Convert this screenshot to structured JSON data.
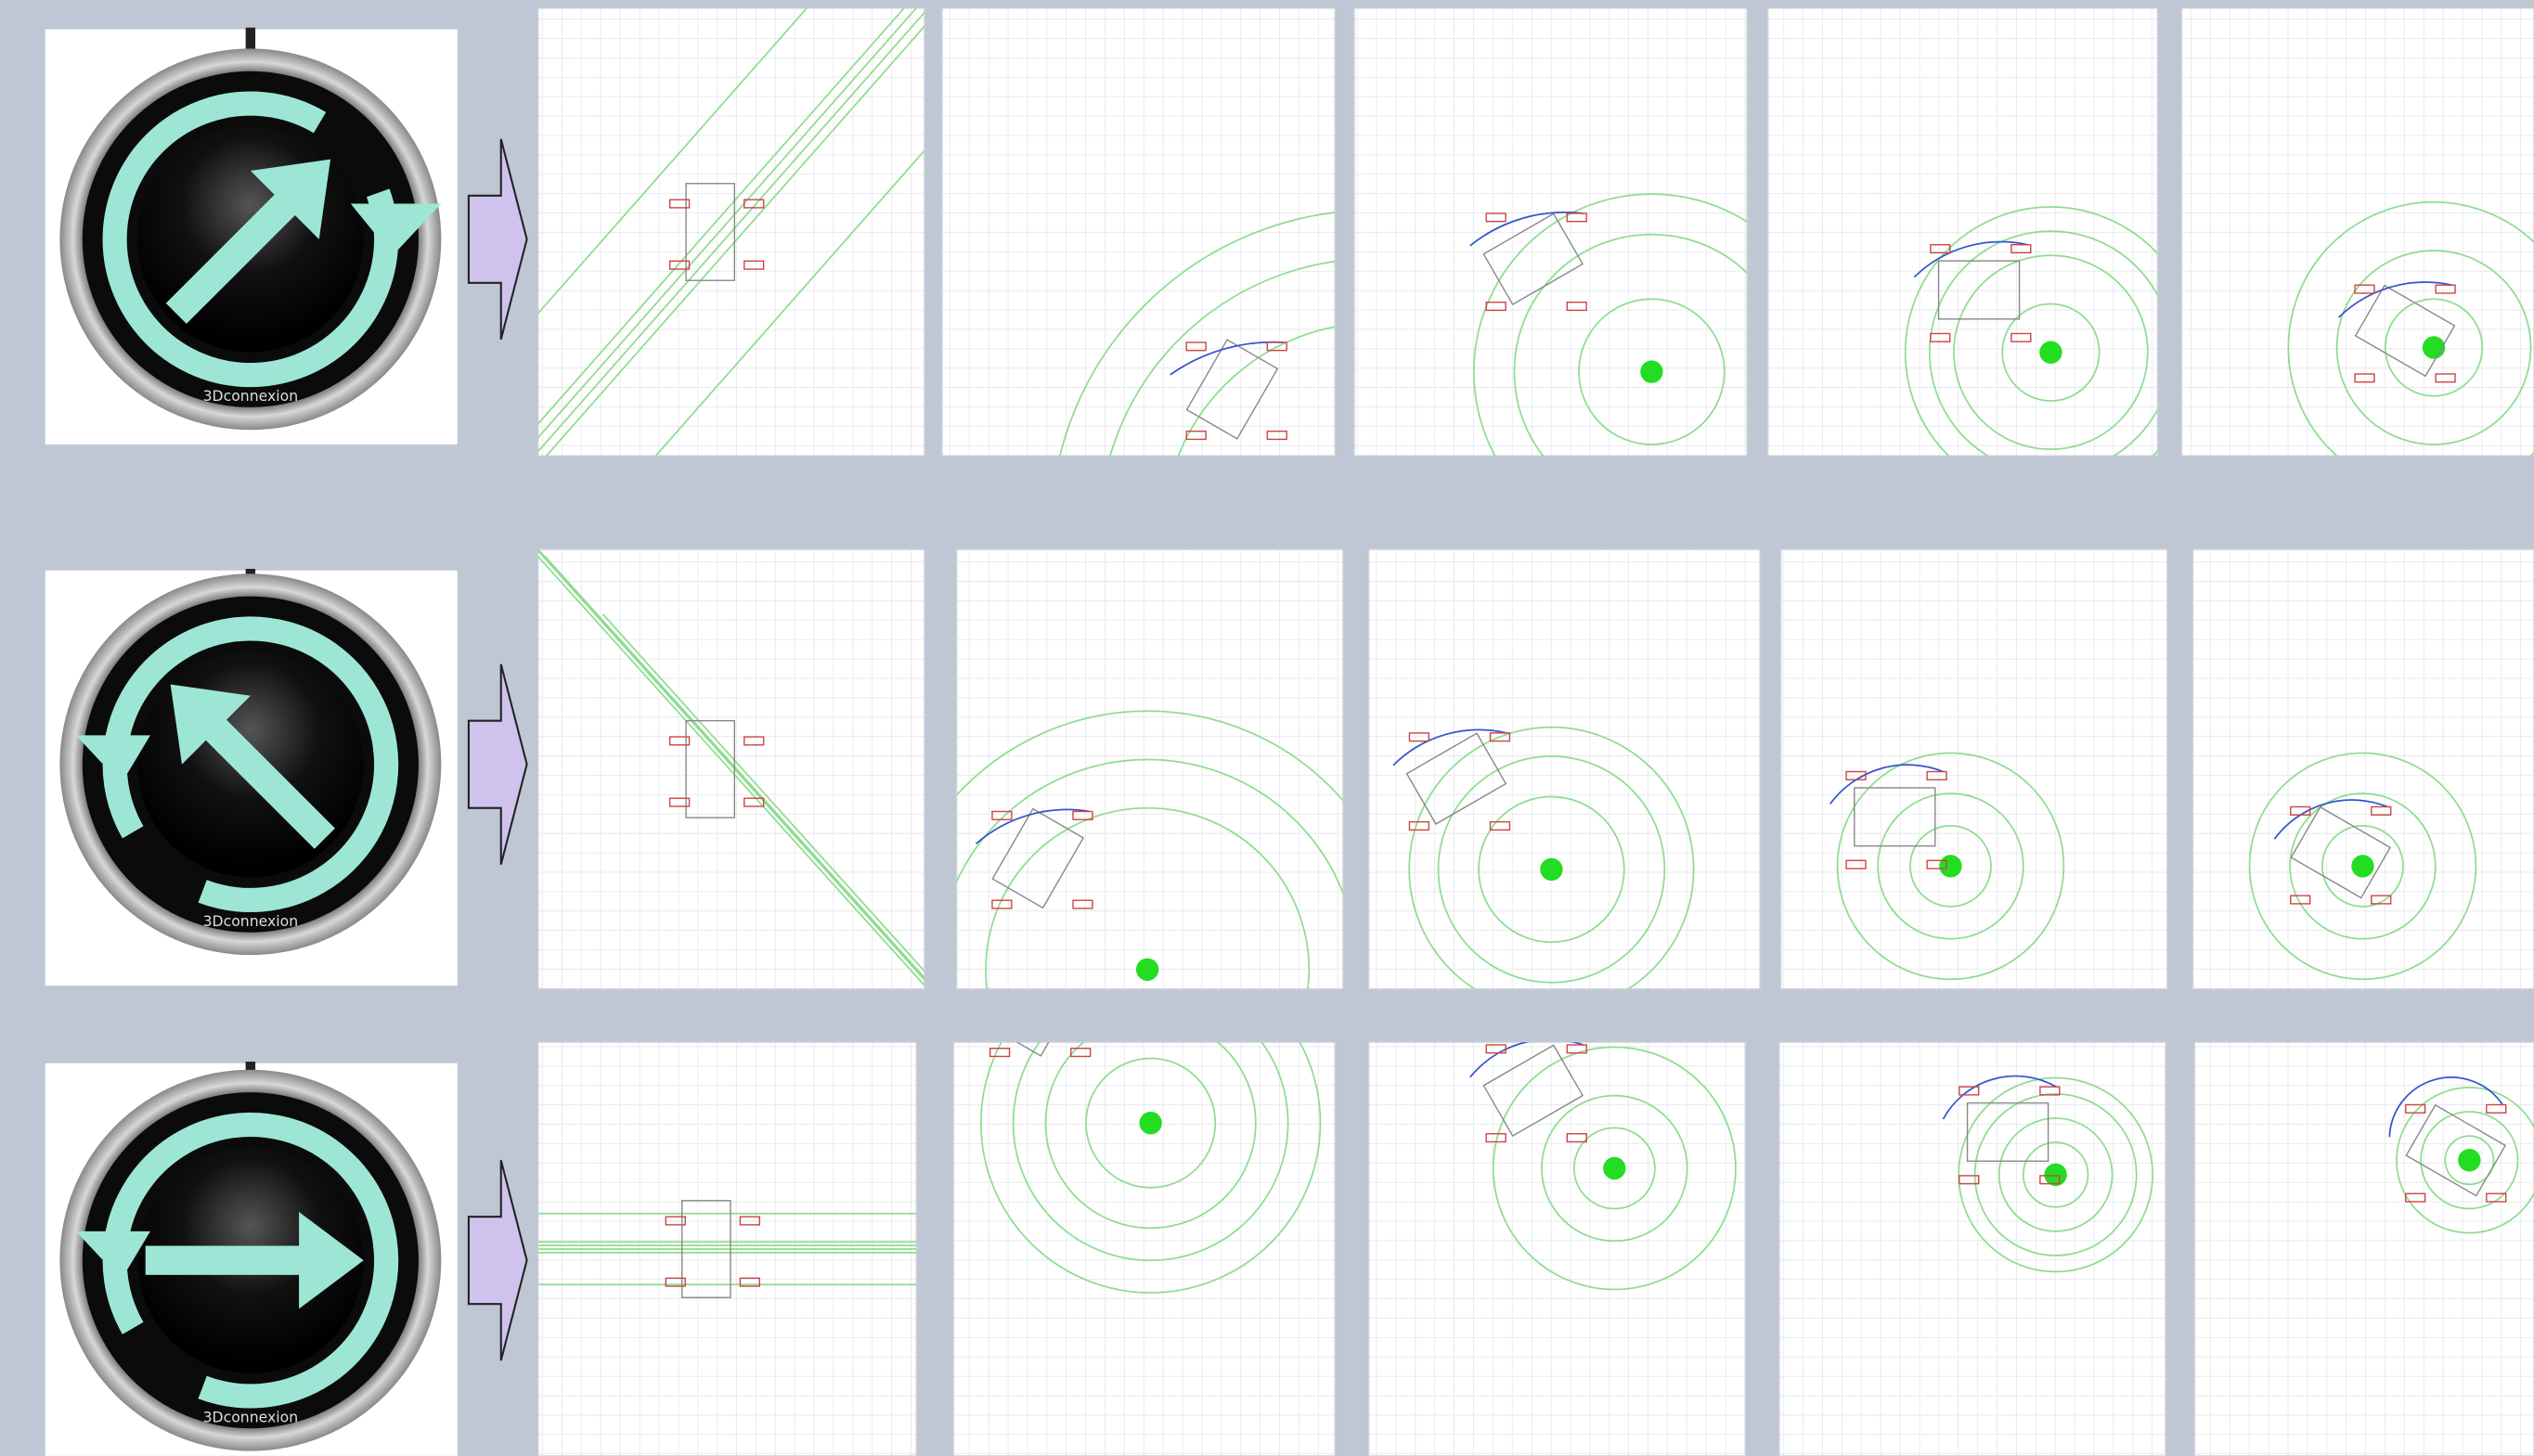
{
  "rows": [
    {
      "device_brand": "3Dconnexion"
    },
    {
      "device_brand": "3Dconnexion"
    },
    {
      "device_brand": "3Dconnexion"
    }
  ]
}
